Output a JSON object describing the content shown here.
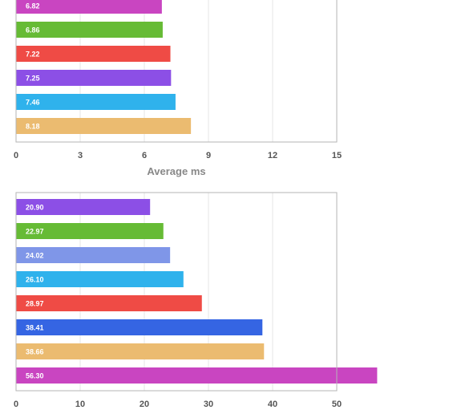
{
  "chart_data": [
    {
      "type": "bar",
      "orientation": "horizontal",
      "values": [
        6.82,
        6.86,
        7.22,
        7.25,
        7.46,
        8.18
      ],
      "value_labels": [
        "6.82",
        "6.86",
        "7.22",
        "7.25",
        "7.46",
        "8.18"
      ],
      "colors": [
        "#c945c1",
        "#66bb35",
        "#ef4b45",
        "#8c4fe6",
        "#2fb2ec",
        "#ebbb70"
      ],
      "xlim": [
        0,
        15
      ],
      "xticks": [
        0,
        3,
        6,
        9,
        12,
        15
      ],
      "xtick_labels": [
        "0",
        "3",
        "6",
        "9",
        "12",
        "15"
      ],
      "xlabel": "Average ms",
      "grid": true
    },
    {
      "type": "bar",
      "orientation": "horizontal",
      "values": [
        20.9,
        22.97,
        24.02,
        26.1,
        28.97,
        38.41,
        38.66,
        56.3
      ],
      "value_labels": [
        "20.90",
        "22.97",
        "24.02",
        "26.10",
        "28.97",
        "38.41",
        "38.66",
        "56.30"
      ],
      "colors": [
        "#8c4fe6",
        "#66bb35",
        "#7f96e8",
        "#2fb2ec",
        "#ef4b45",
        "#3565e3",
        "#ebbb70",
        "#c945c1"
      ],
      "xlim": [
        0,
        50
      ],
      "xticks": [
        0,
        10,
        20,
        30,
        40,
        50
      ],
      "xtick_labels": [
        "0",
        "10",
        "20",
        "30",
        "40",
        "50"
      ],
      "xlabel": "",
      "grid": true
    }
  ]
}
